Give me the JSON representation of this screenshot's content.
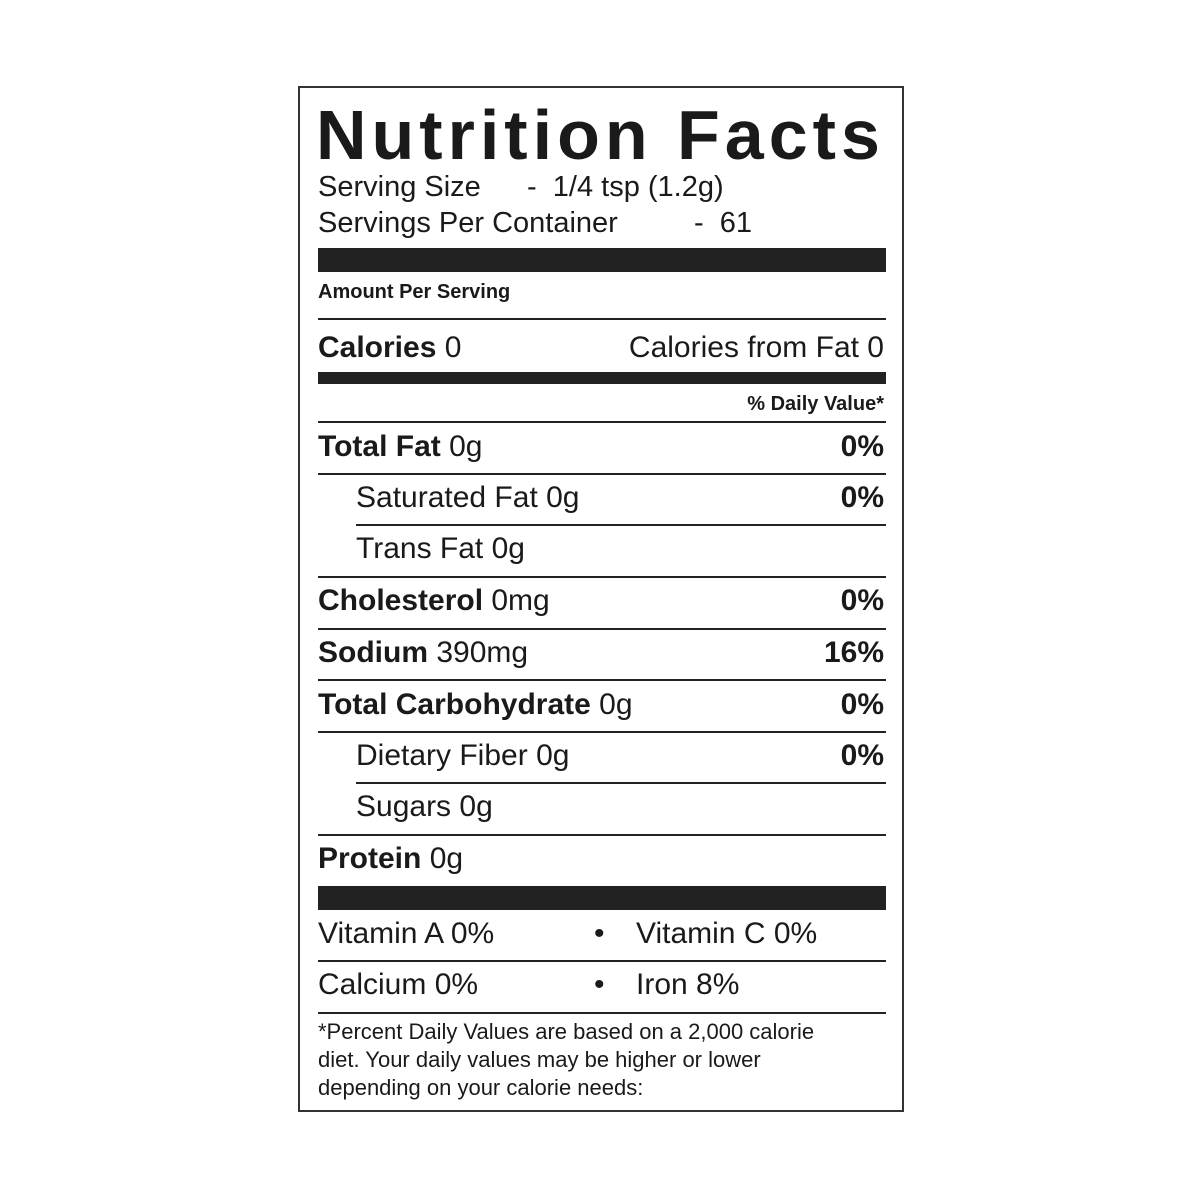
{
  "title": "Nutrition Facts",
  "serving": {
    "size_label": "Serving Size",
    "size_value": "-  1/4 tsp (1.2g)",
    "per_container_label": "Servings Per Container",
    "per_container_value": "-  61"
  },
  "amount_per_serving": "Amount Per Serving",
  "calories": {
    "label": "Calories",
    "value": "0",
    "from_fat": "Calories from Fat 0"
  },
  "daily_value_header": "% Daily Value*",
  "nutrients": [
    {
      "name": "Total Fat",
      "amount": "0g",
      "dv": "0%"
    },
    {
      "name": "Saturated Fat",
      "amount": "0g",
      "dv": "0%"
    },
    {
      "name": "Trans Fat",
      "amount": "0g",
      "dv": ""
    },
    {
      "name": "Cholesterol",
      "amount": "0mg",
      "dv": "0%"
    },
    {
      "name": "Sodium",
      "amount": "390mg",
      "dv": "16%"
    },
    {
      "name": "Total Carbohydrate",
      "amount": "0g",
      "dv": "0%"
    },
    {
      "name": "Dietary Fiber",
      "amount": "0g",
      "dv": "0%"
    },
    {
      "name": "Sugars",
      "amount": "0g",
      "dv": ""
    },
    {
      "name": "Protein",
      "amount": "0g",
      "dv": ""
    }
  ],
  "vitamins": [
    {
      "left": "Vitamin A 0%",
      "right": "Vitamin C 0%"
    },
    {
      "left": "Calcium 0%",
      "right": "Iron 8%"
    }
  ],
  "bullet": "•",
  "footnote": [
    "*Percent Daily Values are based on a 2,000 calorie",
    "diet. Your daily values may be higher or lower",
    "depending on your calorie needs:"
  ]
}
